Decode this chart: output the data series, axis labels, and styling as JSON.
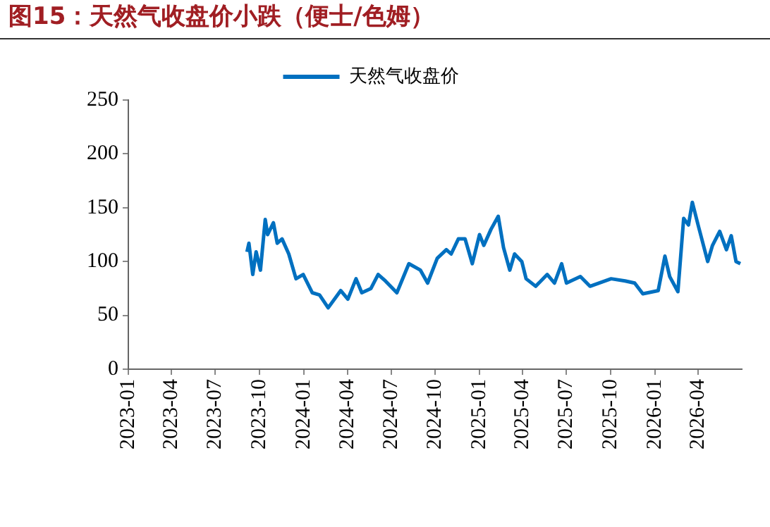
{
  "chart_data": {
    "type": "line",
    "title": "图15：天然气收盘价小跌（便士/色姆）",
    "legend": "top",
    "marker": "none",
    "xlim": [
      "2023-01",
      "2026-07"
    ],
    "xticks": [
      "2023-01",
      "2023-04",
      "2023-07",
      "2023-10",
      "2024-01",
      "2024-04",
      "2024-07",
      "2024-10",
      "2025-01",
      "2025-04",
      "2025-07",
      "2025-10",
      "2026-01",
      "2026-04"
    ],
    "ylim": [
      0,
      250
    ],
    "yticks": [
      0,
      50,
      100,
      150,
      200,
      250
    ],
    "series": [
      {
        "name": "天然气收盘价",
        "color": "#0070c0",
        "x": [
          "2023-09-05",
          "2023-09-09",
          "2023-09-17",
          "2023-09-24",
          "2023-10-03",
          "2023-10-13",
          "2023-10-18",
          "2023-10-30",
          "2023-11-07",
          "2023-11-17",
          "2023-12-01",
          "2023-12-16",
          "2023-12-31",
          "2024-01-19",
          "2024-02-03",
          "2024-02-21",
          "2024-03-18",
          "2024-04-02",
          "2024-04-19",
          "2024-05-01",
          "2024-05-20",
          "2024-06-04",
          "2024-06-19",
          "2024-07-13",
          "2024-08-07",
          "2024-08-31",
          "2024-09-15",
          "2024-10-05",
          "2024-10-24",
          "2024-11-03",
          "2024-11-18",
          "2024-12-02",
          "2024-12-17",
          "2025-01-01",
          "2025-01-10",
          "2025-01-25",
          "2025-02-09",
          "2025-02-20",
          "2025-03-05",
          "2025-03-15",
          "2025-03-30",
          "2025-04-08",
          "2025-04-28",
          "2025-05-22",
          "2025-06-06",
          "2025-06-21",
          "2025-07-01",
          "2025-07-30",
          "2025-08-19",
          "2025-10-02",
          "2025-10-31",
          "2025-11-20",
          "2025-12-07",
          "2026-01-08",
          "2026-01-22",
          "2026-02-01",
          "2026-02-18",
          "2026-03-02",
          "2026-03-12",
          "2026-03-20",
          "2026-04-01",
          "2026-04-21",
          "2026-05-01",
          "2026-05-16",
          "2026-05-30",
          "2026-06-09",
          "2026-06-19",
          "2026-06-28"
        ],
        "values": [
          109,
          117,
          88,
          109,
          92,
          139,
          125,
          136,
          117,
          121,
          107,
          84,
          88,
          71,
          69,
          57,
          73,
          65,
          84,
          71,
          75,
          88,
          82,
          71,
          98,
          92,
          80,
          103,
          111,
          107,
          121,
          121,
          98,
          125,
          115,
          130,
          142,
          113,
          92,
          107,
          100,
          84,
          77,
          88,
          80,
          98,
          80,
          86,
          77,
          84,
          82,
          80,
          70,
          73,
          105,
          86,
          72,
          140,
          134,
          155,
          134,
          100,
          115,
          128,
          111,
          124,
          100,
          98
        ]
      }
    ]
  }
}
